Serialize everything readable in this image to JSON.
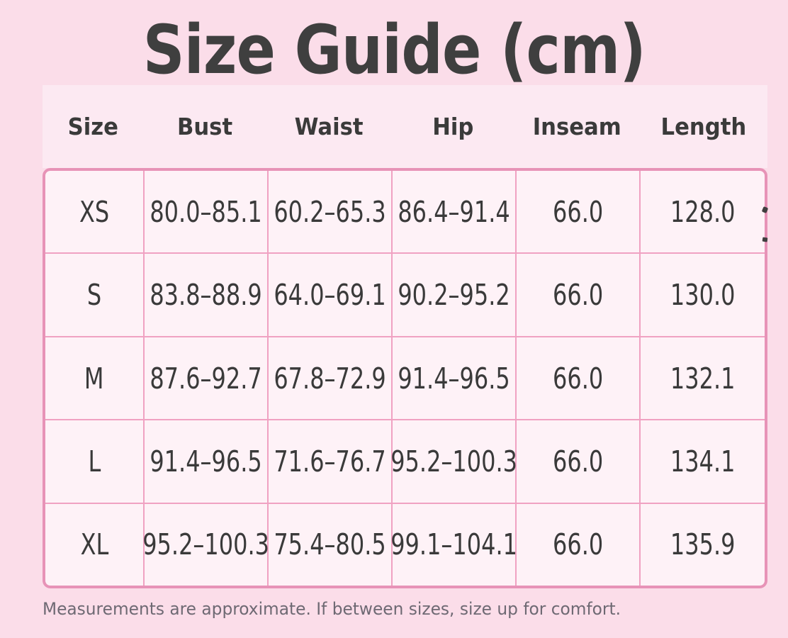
{
  "title": "Size Guide (cm)",
  "footnote": "Measurements are approximate. If between sizes, size up for comfort.",
  "table": {
    "columns": [
      "Size",
      "Bust",
      "Waist",
      "Hip",
      "Inseam",
      "Length"
    ],
    "rows": [
      [
        "XS",
        "80.0–85.1",
        "60.2–65.3",
        "86.4–91.4",
        "66.0",
        "128.0"
      ],
      [
        "S",
        "83.8–88.9",
        "64.0–69.1",
        "90.2–95.2",
        "66.0",
        "130.0"
      ],
      [
        "M",
        "87.6–92.7",
        "67.8–72.9",
        "91.4–96.5",
        "66.0",
        "132.1"
      ],
      [
        "L",
        "91.4–96.5",
        "71.6–76.7",
        "95.2–100.3",
        "66.0",
        "134.1"
      ],
      [
        "XL",
        "95.2–100.3",
        "75.4–80.5",
        "99.1–104.1",
        "66.0",
        "135.9"
      ]
    ]
  },
  "chart_data": {
    "type": "table",
    "title": "Size Guide (cm)",
    "columns": [
      "Size",
      "Bust",
      "Waist",
      "Hip",
      "Inseam",
      "Length"
    ],
    "rows": [
      {
        "size": "XS",
        "bust": "80.0–85.1",
        "waist": "60.2–65.3",
        "hip": "86.4–91.4",
        "inseam": 66.0,
        "length": 128.0
      },
      {
        "size": "S",
        "bust": "83.8–88.9",
        "waist": "64.0–69.1",
        "hip": "90.2–95.2",
        "inseam": 66.0,
        "length": 130.0
      },
      {
        "size": "M",
        "bust": "87.6–92.7",
        "waist": "67.8–72.9",
        "hip": "91.4–96.5",
        "inseam": 66.0,
        "length": 132.1
      },
      {
        "size": "L",
        "bust": "91.4–96.5",
        "waist": "71.6–76.7",
        "hip": "95.2–100.3",
        "inseam": 66.0,
        "length": 134.1
      },
      {
        "size": "XL",
        "bust": "95.2–100.3",
        "waist": "75.4–80.5",
        "hip": "99.1–104.1",
        "inseam": 66.0,
        "length": 135.9
      }
    ],
    "note": "Measurements are approximate. If between sizes, size up for comfort."
  },
  "colors": {
    "background": "#fbdde9",
    "header_band_background": "#fce9f2",
    "cell_background": "#fef2f7",
    "table_border": "#e793b7",
    "grid_line": "#f0a2c2",
    "title_text": "#3f3f3f",
    "body_text": "#3a3a3a",
    "footnote_text": "#6e6973"
  }
}
